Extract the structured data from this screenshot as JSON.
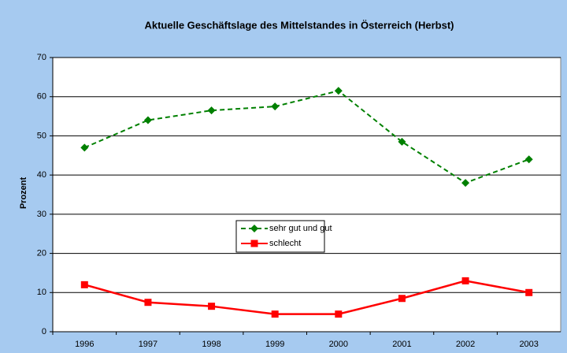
{
  "chart_data": {
    "type": "line",
    "title": "Aktuelle Geschäftslage des Mittelstandes in Österreich (Herbst)",
    "y_label": "Prozent",
    "categories": [
      "1996",
      "1997",
      "1998",
      "1999",
      "2000",
      "2001",
      "2002",
      "2003"
    ],
    "series": [
      {
        "name": "sehr gut und gut",
        "color": "#008000",
        "dash": true,
        "marker": "diamond",
        "values": [
          47,
          54,
          56.5,
          57.5,
          61.5,
          48.5,
          38,
          44
        ]
      },
      {
        "name": "schlecht",
        "color": "#ff0000",
        "dash": false,
        "marker": "square",
        "values": [
          12,
          7.5,
          6.5,
          4.5,
          4.5,
          8.5,
          13,
          10
        ]
      }
    ],
    "ylim": [
      0,
      70
    ],
    "yticks": [
      0,
      10,
      20,
      30,
      40,
      50,
      60,
      70
    ],
    "grid": true,
    "legend": "center"
  }
}
